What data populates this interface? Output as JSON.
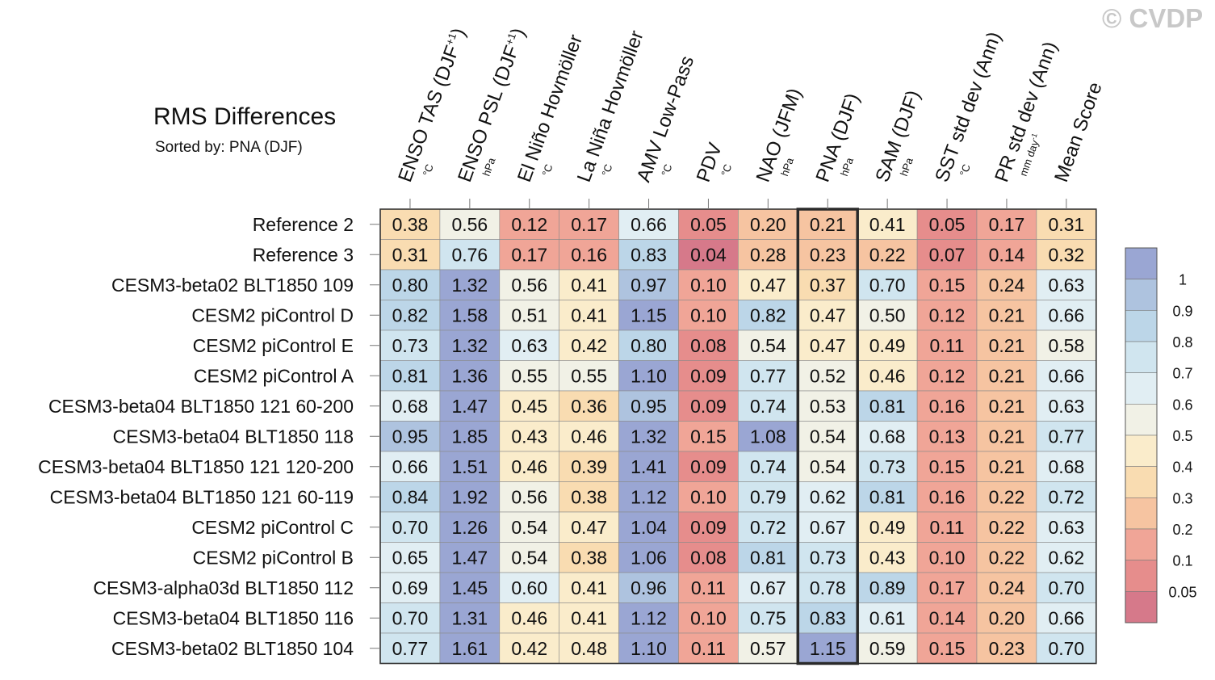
{
  "watermark": "© CVDP",
  "chart_data": {
    "type": "heatmap",
    "title": "RMS Differences",
    "subtitle": "Sorted by: PNA (DJF)",
    "highlight_column": "PNA (DJF)",
    "columns": [
      {
        "label": "ENSO TAS (DJF",
        "sup": "+1",
        "close": ")",
        "unit": "°C"
      },
      {
        "label": "ENSO PSL (DJF",
        "sup": "+1",
        "close": ")",
        "unit": "hPa"
      },
      {
        "label": "El Niño Hovmöller",
        "unit": "°C"
      },
      {
        "label": "La Niña Hovmöller",
        "unit": "°C"
      },
      {
        "label": "AMV Low-Pass",
        "unit": "°C"
      },
      {
        "label": "PDV",
        "unit": "°C"
      },
      {
        "label": "NAO (JFM)",
        "unit": "hPa"
      },
      {
        "label": "PNA (DJF)",
        "unit": "hPa"
      },
      {
        "label": "SAM (DJF)",
        "unit": "hPa"
      },
      {
        "label": "SST std dev (Ann)",
        "unit": "°C"
      },
      {
        "label": "PR std dev (Ann)",
        "unit": "mm day",
        "unit_sup": "-1"
      },
      {
        "label": "Mean Score",
        "unit": ""
      }
    ],
    "rows": [
      "Reference 2",
      "Reference 3",
      "CESM3-beta02 BLT1850 109",
      "CESM2 piControl D",
      "CESM2 piControl E",
      "CESM2 piControl A",
      "CESM3-beta04 BLT1850 121 60-200",
      "CESM3-beta04 BLT1850 118",
      "CESM3-beta04 BLT1850 121 120-200",
      "CESM3-beta04 BLT1850 121 60-119",
      "CESM2 piControl C",
      "CESM2 piControl B",
      "CESM3-alpha03d BLT1850 112",
      "CESM3-beta04 BLT1850 116",
      "CESM3-beta02 BLT1850 104"
    ],
    "values": [
      [
        "0.38",
        "0.56",
        "0.12",
        "0.17",
        "0.66",
        "0.05",
        "0.20",
        "0.21",
        "0.41",
        "0.05",
        "0.17",
        "0.31"
      ],
      [
        "0.31",
        "0.76",
        "0.17",
        "0.16",
        "0.83",
        "0.04",
        "0.28",
        "0.23",
        "0.22",
        "0.07",
        "0.14",
        "0.32"
      ],
      [
        "0.80",
        "1.32",
        "0.56",
        "0.41",
        "0.97",
        "0.10",
        "0.47",
        "0.37",
        "0.70",
        "0.15",
        "0.24",
        "0.63"
      ],
      [
        "0.82",
        "1.58",
        "0.51",
        "0.41",
        "1.15",
        "0.10",
        "0.82",
        "0.47",
        "0.50",
        "0.12",
        "0.21",
        "0.66"
      ],
      [
        "0.73",
        "1.32",
        "0.63",
        "0.42",
        "0.80",
        "0.08",
        "0.54",
        "0.47",
        "0.49",
        "0.11",
        "0.21",
        "0.58"
      ],
      [
        "0.81",
        "1.36",
        "0.55",
        "0.55",
        "1.10",
        "0.09",
        "0.77",
        "0.52",
        "0.46",
        "0.12",
        "0.21",
        "0.66"
      ],
      [
        "0.68",
        "1.47",
        "0.45",
        "0.36",
        "0.95",
        "0.09",
        "0.74",
        "0.53",
        "0.81",
        "0.16",
        "0.21",
        "0.63"
      ],
      [
        "0.95",
        "1.85",
        "0.43",
        "0.46",
        "1.32",
        "0.15",
        "1.08",
        "0.54",
        "0.68",
        "0.13",
        "0.21",
        "0.77"
      ],
      [
        "0.66",
        "1.51",
        "0.46",
        "0.39",
        "1.41",
        "0.09",
        "0.74",
        "0.54",
        "0.73",
        "0.15",
        "0.21",
        "0.68"
      ],
      [
        "0.84",
        "1.92",
        "0.56",
        "0.38",
        "1.12",
        "0.10",
        "0.79",
        "0.62",
        "0.81",
        "0.16",
        "0.22",
        "0.72"
      ],
      [
        "0.70",
        "1.26",
        "0.54",
        "0.47",
        "1.04",
        "0.09",
        "0.72",
        "0.67",
        "0.49",
        "0.11",
        "0.22",
        "0.63"
      ],
      [
        "0.65",
        "1.47",
        "0.54",
        "0.38",
        "1.06",
        "0.08",
        "0.81",
        "0.73",
        "0.43",
        "0.10",
        "0.22",
        "0.62"
      ],
      [
        "0.69",
        "1.45",
        "0.60",
        "0.41",
        "0.96",
        "0.11",
        "0.67",
        "0.78",
        "0.89",
        "0.17",
        "0.24",
        "0.70"
      ],
      [
        "0.70",
        "1.31",
        "0.46",
        "0.41",
        "1.12",
        "0.10",
        "0.75",
        "0.83",
        "0.61",
        "0.14",
        "0.20",
        "0.66"
      ],
      [
        "0.77",
        "1.61",
        "0.42",
        "0.48",
        "1.10",
        "0.11",
        "0.57",
        "1.15",
        "0.59",
        "0.15",
        "0.23",
        "0.70"
      ]
    ],
    "colorbar": {
      "levels": [
        "1",
        "0.9",
        "0.8",
        "0.7",
        "0.6",
        "0.5",
        "0.4",
        "0.3",
        "0.2",
        "0.1",
        "0.05"
      ],
      "level_values": [
        1,
        0.9,
        0.8,
        0.7,
        0.6,
        0.5,
        0.4,
        0.3,
        0.2,
        0.1,
        0.05
      ],
      "colors": [
        "#9aa6d3",
        "#aec3df",
        "#bcd6e8",
        "#d0e5ef",
        "#e1eef3",
        "#f1f1e6",
        "#faeccb",
        "#f9dcb1",
        "#f6c4a1",
        "#f0a597",
        "#e68d8c",
        "#d6798a"
      ]
    }
  }
}
